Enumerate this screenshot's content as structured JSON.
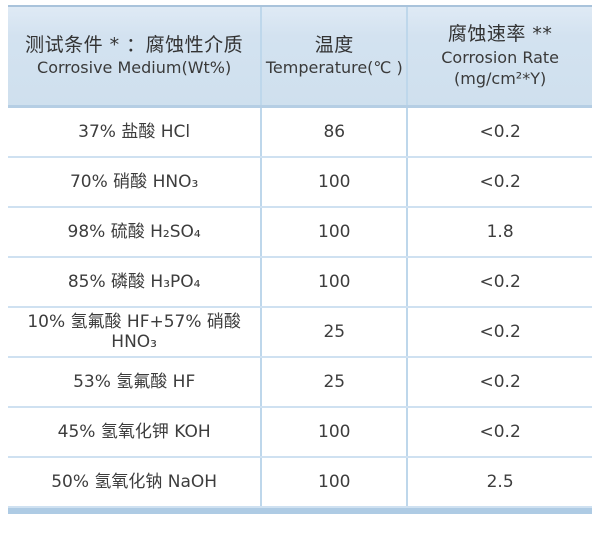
{
  "colors": {
    "header_bg_top": "#dfeaf5",
    "header_bg_bottom": "#cfe0ee",
    "header_top_border": "#a9c3db",
    "header_bottom_border": "#b5cee4",
    "row_divider": "#cfe1f1",
    "column_divider": "#bed7eb",
    "bottom_bar": "#aecbe4",
    "text": "#3d3d3d",
    "background": "#ffffff"
  },
  "table": {
    "header": {
      "col1": {
        "line1": "测试条件 * ：腐蚀性介质",
        "line2": "Corrosive Medium(Wt%)"
      },
      "col2": {
        "line1": "温度",
        "line2": "Temperature(℃ )"
      },
      "col3": {
        "line1": "腐蚀速率 **",
        "line2": "Corrosion Rate",
        "line3": "(mg/cm²*Y)"
      }
    },
    "rows": [
      {
        "medium": "37% 盐酸 HCl",
        "temperature": "86",
        "rate": "<0.2"
      },
      {
        "medium": "70% 硝酸 HNO₃",
        "temperature": "100",
        "rate": "<0.2"
      },
      {
        "medium": "98% 硫酸 H₂SO₄",
        "temperature": "100",
        "rate": "1.8"
      },
      {
        "medium": "85% 磷酸 H₃PO₄",
        "temperature": "100",
        "rate": "<0.2"
      },
      {
        "medium": "10% 氢氟酸 HF+57% 硝酸\nHNO₃",
        "temperature": "25",
        "rate": "<0.2"
      },
      {
        "medium": "53% 氢氟酸 HF",
        "temperature": "25",
        "rate": "<0.2"
      },
      {
        "medium": "45% 氢氧化钾 KOH",
        "temperature": "100",
        "rate": "<0.2"
      },
      {
        "medium": "50% 氢氧化钠 NaOH",
        "temperature": "100",
        "rate": "2.5"
      }
    ]
  },
  "chart_data": {
    "type": "table",
    "title": "",
    "columns": [
      "测试条件*：腐蚀性介质 Corrosive Medium(Wt%)",
      "温度 Temperature(℃)",
      "腐蚀速率** Corrosion Rate (mg/cm²*Y)"
    ],
    "rows": [
      [
        "37% 盐酸 HCl",
        86,
        "<0.2"
      ],
      [
        "70% 硝酸 HNO₃",
        100,
        "<0.2"
      ],
      [
        "98% 硫酸 H₂SO₄",
        100,
        "1.8"
      ],
      [
        "85% 磷酸 H₃PO₄",
        100,
        "<0.2"
      ],
      [
        "10% 氢氟酸 HF+57% 硝酸 HNO₃",
        25,
        "<0.2"
      ],
      [
        "53% 氢氟酸 HF",
        25,
        "<0.2"
      ],
      [
        "45% 氢氧化钾 KOH",
        100,
        "<0.2"
      ],
      [
        "50% 氢氧化钠 NaOH",
        100,
        "2.5"
      ]
    ]
  }
}
